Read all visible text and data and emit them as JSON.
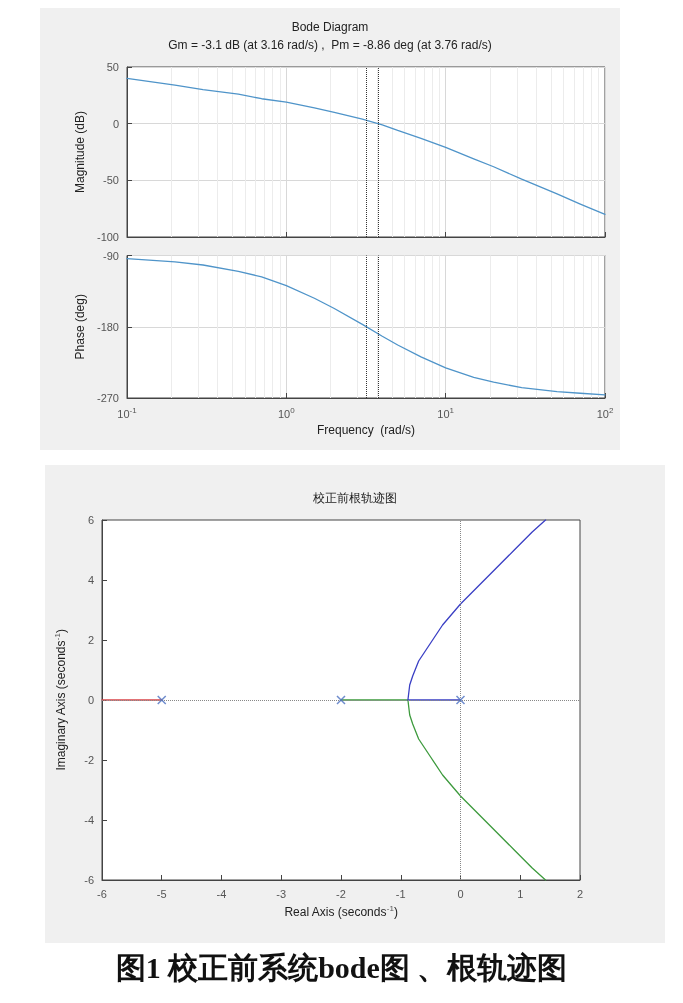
{
  "chart_data": [
    {
      "type": "line",
      "title": "Bode Diagram",
      "subtitle": "Gm = -3.1 dB (at 3.16 rad/s) ,  Pm = -8.86 deg (at 3.76 rad/s)",
      "ylabel": "Magnitude (dB)",
      "x": [
        0.1,
        0.2,
        0.3,
        0.5,
        0.7,
        1,
        1.5,
        2,
        3,
        4,
        5,
        7,
        10,
        15,
        20,
        30,
        50,
        70,
        100
      ],
      "series": [
        {
          "color": "#4f94c9",
          "values": [
            40,
            34,
            30,
            26,
            22,
            19,
            14,
            10,
            4,
            -1,
            -6,
            -13,
            -21,
            -31,
            -38,
            -49,
            -62,
            -71,
            -80
          ]
        }
      ],
      "log": "x",
      "xlim": [
        0.1,
        100
      ],
      "xticks": [
        {
          "value": 0.1,
          "label": null
        },
        {
          "value": 1,
          "label": null
        },
        {
          "value": 10,
          "label": null
        },
        {
          "value": 100,
          "label": null
        }
      ],
      "ylim": [
        -100,
        50
      ],
      "yticks": [
        -100,
        -50,
        0,
        50
      ],
      "grid": true,
      "marker": "none",
      "tick_labels": "y",
      "ref_lines": [
        {
          "axis": "x",
          "value": 3.16,
          "line_style": "dotted",
          "color": "#333333"
        },
        {
          "axis": "x",
          "value": 3.76,
          "line_style": "dotted",
          "color": "#333333"
        }
      ]
    },
    {
      "type": "line",
      "xlabel": "Frequency  (rad/s)",
      "ylabel": "Phase (deg)",
      "x": [
        0.1,
        0.2,
        0.3,
        0.5,
        0.7,
        1,
        1.5,
        2,
        3,
        4,
        5,
        7,
        10,
        15,
        20,
        30,
        50,
        70,
        100
      ],
      "series": [
        {
          "color": "#4f94c9",
          "values": [
            -94,
            -98,
            -102,
            -110,
            -117,
            -128,
            -144,
            -157,
            -177,
            -192,
            -203,
            -218,
            -232,
            -244,
            -250,
            -257,
            -262,
            -264,
            -266
          ]
        }
      ],
      "log": "x",
      "xlim": [
        0.1,
        100
      ],
      "xticks": [
        {
          "value": 0.1,
          "label": "10$^{-1}$"
        },
        {
          "value": 1,
          "label": "10$^{0}$"
        },
        {
          "value": 10,
          "label": "10$^{1}$"
        },
        {
          "value": 100,
          "label": "10$^{2}$"
        }
      ],
      "ylim": [
        -270,
        -90
      ],
      "yticks": [
        -270,
        -180,
        -90
      ],
      "grid": true,
      "marker": "none",
      "ref_lines": [
        {
          "axis": "x",
          "value": 3.16,
          "line_style": "dotted",
          "color": "#333333"
        },
        {
          "axis": "x",
          "value": 3.76,
          "line_style": "dotted",
          "color": "#333333"
        }
      ]
    },
    {
      "type": "line",
      "title": "校正前根轨迹图",
      "xlabel": "Real Axis (seconds$^{-1}$)",
      "ylabel": "Imaginary Axis (seconds$^{-1}$)",
      "series": [
        {
          "color": "#d9454a",
          "x": [
            -6,
            -5
          ],
          "values": [
            0,
            0
          ]
        },
        {
          "color": "#3d9a3d",
          "x": [
            -2,
            -0.88,
            -0.85,
            -0.8,
            -0.7,
            -0.6,
            -0.5,
            -0.3,
            0,
            0.3,
            0.6,
            0.9,
            1.2,
            1.423
          ],
          "values": [
            0,
            0,
            -0.5,
            -0.8,
            -1.3,
            -1.6,
            -1.9,
            -2.5,
            -3.2,
            -3.8,
            -4.4,
            -5,
            -5.6,
            -6
          ]
        },
        {
          "color": "#3a3fc4",
          "x": [
            0,
            -0.88,
            -0.85,
            -0.8,
            -0.7,
            -0.6,
            -0.5,
            -0.3,
            0,
            0.3,
            0.6,
            0.9,
            1.2,
            1.423
          ],
          "values": [
            0,
            0,
            0.5,
            0.8,
            1.3,
            1.6,
            1.9,
            2.5,
            3.2,
            3.8,
            4.4,
            5,
            5.6,
            6
          ]
        },
        {
          "type": "scatter",
          "marker": "cross",
          "color": "#4a6fc0",
          "x": [
            -5,
            -2,
            0
          ],
          "values": [
            0,
            0,
            0
          ]
        }
      ],
      "xlim": [
        -6,
        2
      ],
      "xticks": [
        -6,
        -5,
        -4,
        -3,
        -2,
        -1,
        0,
        1,
        2
      ],
      "ylim": [
        -6,
        6
      ],
      "yticks": [
        -6,
        -4,
        -2,
        0,
        2,
        4,
        6
      ],
      "grid": false,
      "marker": "none",
      "ref_lines": [
        {
          "axis": "x",
          "value": 0,
          "line_style": "dotted",
          "color": "#888888"
        },
        {
          "axis": "y",
          "value": 0,
          "line_style": "dotted",
          "color": "#888888"
        }
      ],
      "annotations": [
        "图1  校正前系统bode图 、根轨迹图"
      ]
    }
  ]
}
